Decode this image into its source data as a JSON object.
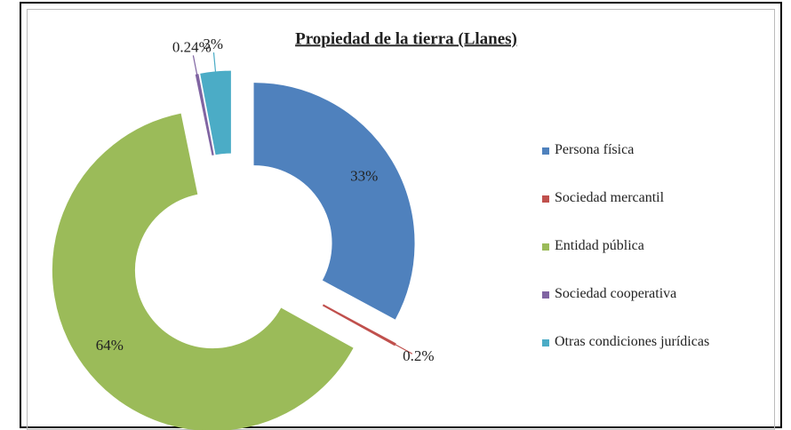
{
  "chart_data": {
    "type": "donut",
    "title": "Propiedad de la tierra (Llanes)",
    "categories": [
      "Persona física",
      "Sociedad mercantil",
      "Entidad pública",
      "Sociedad cooperativa",
      "Otras condiciones jurídicas"
    ],
    "values": [
      33,
      0.2,
      64,
      0.24,
      3
    ],
    "value_labels": [
      "33%",
      "0.2%",
      "64%",
      "0.24%",
      "3%"
    ],
    "colors": [
      "#4f81bd",
      "#c0504d",
      "#9bbb59",
      "#8064a2",
      "#4bacc6"
    ],
    "legend": "right"
  }
}
